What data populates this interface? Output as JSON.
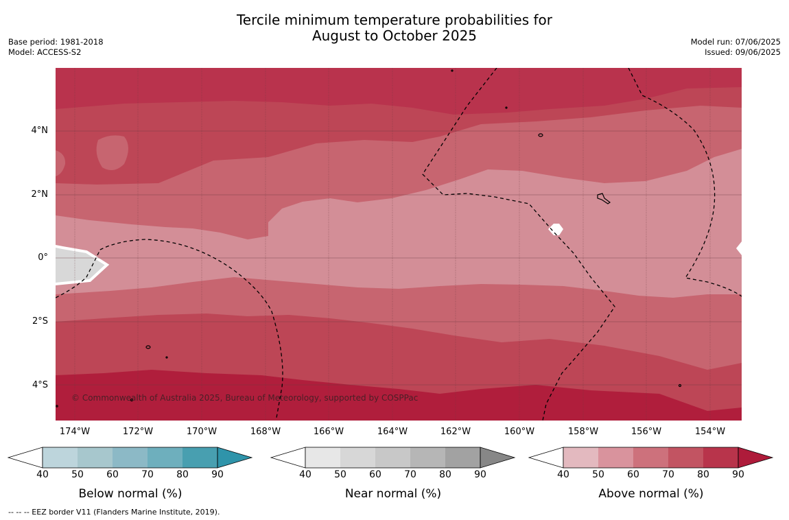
{
  "title": {
    "line1": "Tercile minimum temperature probabilities for",
    "line2": "August to October 2025"
  },
  "meta": {
    "base_period": "Base period: 1981-2018",
    "model": "Model: ACCESS-S2",
    "model_run": "Model run: 07/06/2025",
    "issued": "Issued: 09/06/2025"
  },
  "map": {
    "lat_ticks": [
      "4°N",
      "2°N",
      "0°",
      "2°S",
      "4°S"
    ],
    "lon_ticks": [
      "174°W",
      "172°W",
      "170°W",
      "168°W",
      "166°W",
      "164°W",
      "162°W",
      "160°W",
      "158°W",
      "156°W",
      "154°W"
    ],
    "copyright": "© Commonwealth of Australia 2025, Bureau of Meteorology, supported by COSPPac",
    "colors": {
      "above_60_70": "#d38e97",
      "above_70_80": "#c76570",
      "above_80_90": "#bd4656",
      "above_90": "#b01e3c",
      "near_high": "#d8d8d8"
    }
  },
  "colorbars": [
    {
      "name": "below",
      "title": "Below normal (%)",
      "labels": [
        "40",
        "50",
        "60",
        "70",
        "80",
        "90"
      ],
      "colors": [
        "#bdd5dc",
        "#a7c7cd",
        "#8cb9c6",
        "#6eafbd",
        "#489fb0",
        "#2f94aa"
      ]
    },
    {
      "name": "near",
      "title": "Near normal (%)",
      "labels": [
        "40",
        "50",
        "60",
        "70",
        "80",
        "90"
      ],
      "colors": [
        "#e7e7e7",
        "#d7d7d7",
        "#c8c8c8",
        "#b6b6b6",
        "#a2a2a2",
        "#878787"
      ]
    },
    {
      "name": "above",
      "title": "Above normal (%)",
      "labels": [
        "40",
        "50",
        "60",
        "70",
        "80",
        "90"
      ],
      "colors": [
        "#e3b9bf",
        "#d9939d",
        "#cd717c",
        "#c25462",
        "#b8344b",
        "#ae1b3a"
      ]
    }
  ],
  "footer": {
    "legend": "-- -- -- EEZ border V11 (Flanders Marine Institute, 2019)."
  }
}
